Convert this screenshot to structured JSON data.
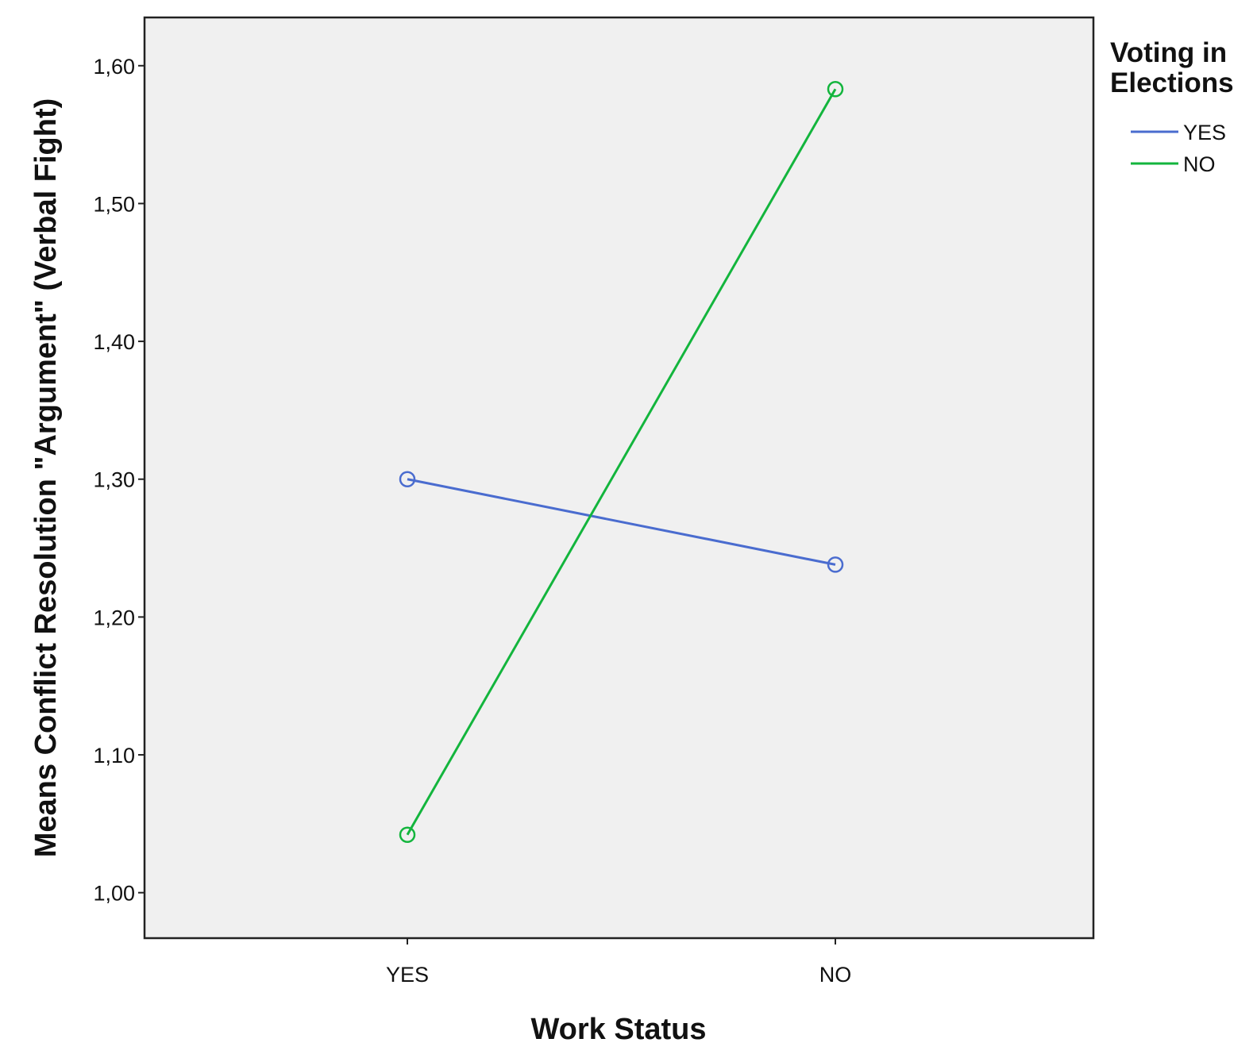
{
  "chart_data": {
    "type": "line",
    "title": "",
    "xlabel": "Work Status",
    "ylabel": "Means Conflict Resolution \"Argument\" (Verbal Fight)",
    "categories": [
      "YES",
      "NO"
    ],
    "ylim": [
      0.967,
      1.635
    ],
    "yticks": [
      1.0,
      1.1,
      1.2,
      1.3,
      1.4,
      1.5,
      1.6
    ],
    "ytick_labels": [
      "1,00",
      "1,10",
      "1,20",
      "1,30",
      "1,40",
      "1,50",
      "1,60"
    ],
    "grid": false,
    "markers": "open-circle",
    "plot_background": "#f0f0f0",
    "legend": {
      "title_lines": [
        "Voting in",
        "Elections"
      ],
      "placement": "right-top"
    },
    "series": [
      {
        "name": "YES",
        "color": "#4a6ccf",
        "values": [
          1.3,
          1.238
        ]
      },
      {
        "name": "NO",
        "color": "#13b53d",
        "values": [
          1.042,
          1.583
        ]
      }
    ]
  }
}
